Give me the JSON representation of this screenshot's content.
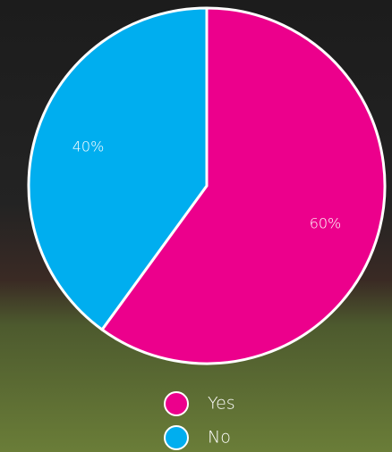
{
  "chart_data": {
    "type": "pie",
    "categories": [
      "Yes",
      "No"
    ],
    "values": [
      60,
      40
    ],
    "value_labels": [
      "60%",
      "40%"
    ],
    "colors": [
      "#ec008c",
      "#00aeef"
    ]
  }
}
